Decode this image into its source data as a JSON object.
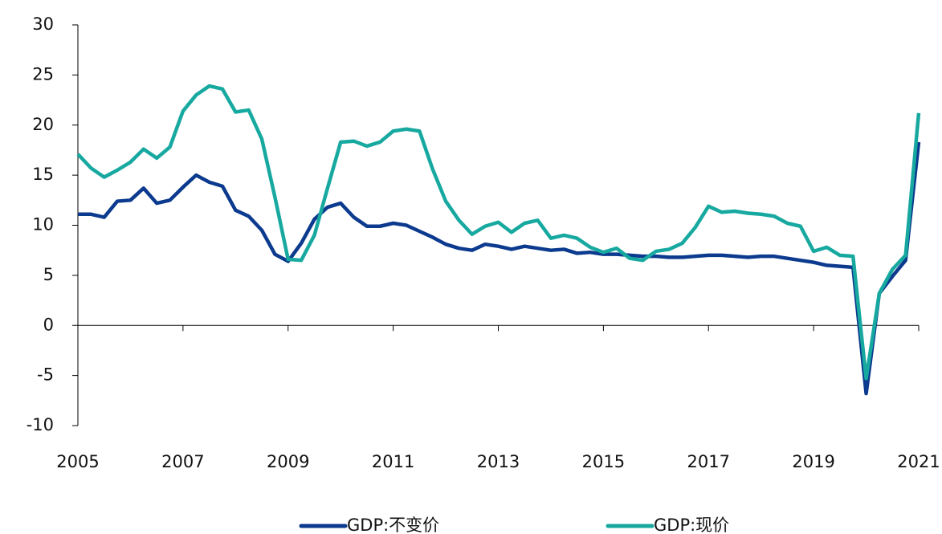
{
  "chart_data": {
    "type": "line",
    "x": [
      2005,
      2005.25,
      2005.5,
      2005.75,
      2006,
      2006.25,
      2006.5,
      2006.75,
      2007,
      2007.25,
      2007.5,
      2007.75,
      2008,
      2008.25,
      2008.5,
      2008.75,
      2009,
      2009.25,
      2009.5,
      2009.75,
      2010,
      2010.25,
      2010.5,
      2010.75,
      2011,
      2011.25,
      2011.5,
      2011.75,
      2012,
      2012.25,
      2012.5,
      2012.75,
      2013,
      2013.25,
      2013.5,
      2013.75,
      2014,
      2014.25,
      2014.5,
      2014.75,
      2015,
      2015.25,
      2015.5,
      2015.75,
      2016,
      2016.25,
      2016.5,
      2016.75,
      2017,
      2017.25,
      2017.5,
      2017.75,
      2018,
      2018.25,
      2018.5,
      2018.75,
      2019,
      2019.25,
      2019.5,
      2019.75,
      2020,
      2020.25,
      2020.5,
      2020.75,
      2021
    ],
    "series": [
      {
        "name": "GDP:不变价",
        "color": "#0b3a8e",
        "values": [
          11.1,
          11.1,
          10.8,
          12.4,
          12.5,
          13.7,
          12.2,
          12.5,
          13.8,
          15.0,
          14.3,
          13.9,
          11.5,
          10.9,
          9.5,
          7.1,
          6.4,
          8.2,
          10.6,
          11.8,
          12.2,
          10.8,
          9.9,
          9.9,
          10.2,
          10.0,
          9.4,
          8.8,
          8.1,
          7.7,
          7.5,
          8.1,
          7.9,
          7.6,
          7.9,
          7.7,
          7.5,
          7.6,
          7.2,
          7.3,
          7.1,
          7.1,
          7.0,
          6.9,
          6.9,
          6.8,
          6.8,
          6.9,
          7.0,
          7.0,
          6.9,
          6.8,
          6.9,
          6.9,
          6.7,
          6.5,
          6.3,
          6.0,
          5.9,
          5.8,
          -6.8,
          3.2,
          4.9,
          6.5,
          18.3
        ]
      },
      {
        "name": "GDP:现价",
        "color": "#17a9a0",
        "values": [
          17.1,
          15.7,
          14.8,
          15.5,
          16.3,
          17.6,
          16.7,
          17.8,
          21.4,
          23.0,
          23.9,
          23.6,
          21.3,
          21.5,
          18.6,
          12.8,
          6.6,
          6.5,
          9.0,
          13.7,
          18.3,
          18.4,
          17.9,
          18.3,
          19.4,
          19.6,
          19.4,
          15.6,
          12.4,
          10.5,
          9.1,
          9.9,
          10.3,
          9.3,
          10.2,
          10.5,
          8.7,
          9.0,
          8.7,
          7.8,
          7.3,
          7.7,
          6.7,
          6.5,
          7.4,
          7.6,
          8.2,
          9.8,
          11.9,
          11.3,
          11.4,
          11.2,
          11.1,
          10.9,
          10.2,
          9.9,
          7.4,
          7.8,
          7.0,
          6.9,
          -5.3,
          3.2,
          5.6,
          7.0,
          21.2
        ]
      }
    ],
    "xlim": [
      2005,
      2021
    ],
    "xticks": [
      2005,
      2007,
      2009,
      2011,
      2013,
      2015,
      2017,
      2019,
      2021
    ],
    "ylim": [
      -10,
      30
    ],
    "yticks": [
      -10,
      -5,
      0,
      5,
      10,
      15,
      20,
      25,
      30
    ],
    "legend": "bottom"
  }
}
